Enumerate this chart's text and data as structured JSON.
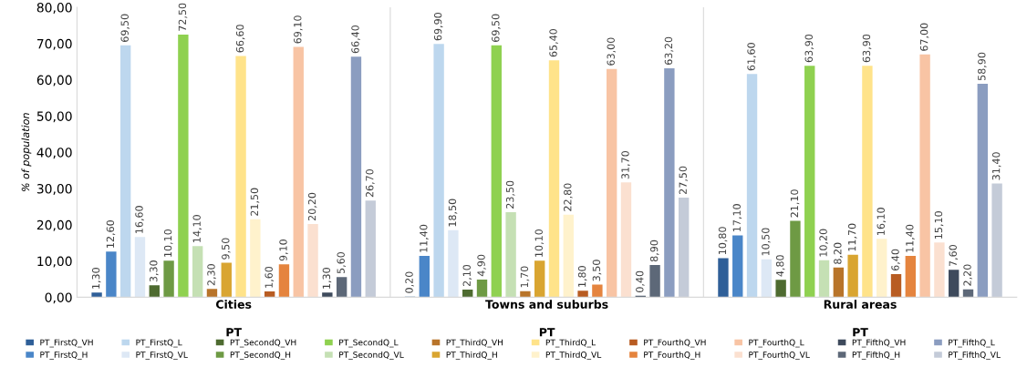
{
  "chart_data": {
    "type": "bar",
    "ylabel": "% of population",
    "categories": [
      "Cities",
      "Towns and suburbs",
      "Rural areas"
    ],
    "annotations": [
      "PT",
      "PT",
      "PT"
    ],
    "ylim": [
      0,
      80
    ],
    "yticks": [
      {
        "value": 0,
        "label": "0,00"
      },
      {
        "value": 10,
        "label": "10,00"
      },
      {
        "value": 20,
        "label": "20,00"
      },
      {
        "value": 30,
        "label": "30,00"
      },
      {
        "value": 40,
        "label": "40,00"
      },
      {
        "value": 50,
        "label": "50,00"
      },
      {
        "value": 60,
        "label": "60,00"
      },
      {
        "value": 70,
        "label": "70,00"
      },
      {
        "value": 80,
        "label": "80,00"
      }
    ],
    "grid": false,
    "legend": "bottom",
    "series": [
      {
        "name": "PT_FirstQ_VH",
        "color": "#2f5f98",
        "values": [
          1.3,
          0.2,
          10.8
        ],
        "value_labels": [
          "1,30",
          "0,20",
          "10,80"
        ]
      },
      {
        "name": "PT_FirstQ_H",
        "color": "#4a86c8",
        "values": [
          12.6,
          11.4,
          17.1
        ],
        "value_labels": [
          "12,60",
          "11,40",
          "17,10"
        ]
      },
      {
        "name": "PT_FirstQ_L",
        "color": "#bdd7ee",
        "values": [
          69.5,
          69.9,
          61.6
        ],
        "value_labels": [
          "69,50",
          "69,90",
          "61,60"
        ]
      },
      {
        "name": "PT_FirstQ_VL",
        "color": "#dde8f5",
        "values": [
          16.6,
          18.5,
          10.5
        ],
        "value_labels": [
          "16,60",
          "18,50",
          "10,50"
        ]
      },
      {
        "name": "PT_SecondQ_VH",
        "color": "#4e6b30",
        "values": [
          3.3,
          2.1,
          4.8
        ],
        "value_labels": [
          "3,30",
          "2,10",
          "4,80"
        ]
      },
      {
        "name": "PT_SecondQ_H",
        "color": "#6e9a44",
        "values": [
          10.1,
          4.9,
          21.1
        ],
        "value_labels": [
          "10,10",
          "4,90",
          "21,10"
        ]
      },
      {
        "name": "PT_SecondQ_L",
        "color": "#8fd150",
        "values": [
          72.5,
          69.5,
          63.9
        ],
        "value_labels": [
          "72,50",
          "69,50",
          "63,90"
        ]
      },
      {
        "name": "PT_SecondQ_VL",
        "color": "#c5e0b4",
        "values": [
          14.1,
          23.5,
          10.2
        ],
        "value_labels": [
          "14,10",
          "23,50",
          "10,20"
        ]
      },
      {
        "name": "PT_ThirdQ_VH",
        "color": "#b8742a",
        "values": [
          2.3,
          1.7,
          8.2
        ],
        "value_labels": [
          "2,30",
          "1,70",
          "8,20"
        ]
      },
      {
        "name": "PT_ThirdQ_H",
        "color": "#d9a531",
        "values": [
          9.5,
          10.1,
          11.7
        ],
        "value_labels": [
          "9,50",
          "10,10",
          "11,70"
        ]
      },
      {
        "name": "PT_ThirdQ_L",
        "color": "#ffe38a",
        "values": [
          66.6,
          65.4,
          63.9
        ],
        "value_labels": [
          "66,60",
          "65,40",
          "63,90"
        ]
      },
      {
        "name": "PT_ThirdQ_VL",
        "color": "#fff2cc",
        "values": [
          21.5,
          22.8,
          16.1
        ],
        "value_labels": [
          "21,50",
          "22,80",
          "16,10"
        ]
      },
      {
        "name": "PT_FourthQ_VH",
        "color": "#b85c22",
        "values": [
          1.6,
          1.8,
          6.4
        ],
        "value_labels": [
          "1,60",
          "1,80",
          "6,40"
        ]
      },
      {
        "name": "PT_FourthQ_H",
        "color": "#e5843e",
        "values": [
          9.1,
          3.5,
          11.4
        ],
        "value_labels": [
          "9,10",
          "3,50",
          "11,40"
        ]
      },
      {
        "name": "PT_FourthQ_L",
        "color": "#f8c4a4",
        "values": [
          69.1,
          63.0,
          67.0
        ],
        "value_labels": [
          "69,10",
          "63,00",
          "67,00"
        ]
      },
      {
        "name": "PT_FourthQ_VL",
        "color": "#fbe0d0",
        "values": [
          20.2,
          31.7,
          15.1
        ],
        "value_labels": [
          "20,20",
          "31,70",
          "15,10"
        ]
      },
      {
        "name": "PT_FifthQ_VH",
        "color": "#3e4a5c",
        "values": [
          1.3,
          0.4,
          7.6
        ],
        "value_labels": [
          "1,30",
          "0,40",
          "7,60"
        ]
      },
      {
        "name": "PT_FifthQ_H",
        "color": "#5d6878",
        "values": [
          5.6,
          8.9,
          2.2
        ],
        "value_labels": [
          "5,60",
          "8,90",
          "2,20"
        ]
      },
      {
        "name": "PT_FifthQ_L",
        "color": "#8b9dc0",
        "values": [
          66.4,
          63.2,
          58.9
        ],
        "value_labels": [
          "66,40",
          "63,20",
          "58,90"
        ]
      },
      {
        "name": "PT_FifthQ_VL",
        "color": "#c4cbd8",
        "values": [
          26.7,
          27.5,
          31.4
        ],
        "value_labels": [
          "26,70",
          "27,50",
          "31,40"
        ]
      }
    ]
  }
}
